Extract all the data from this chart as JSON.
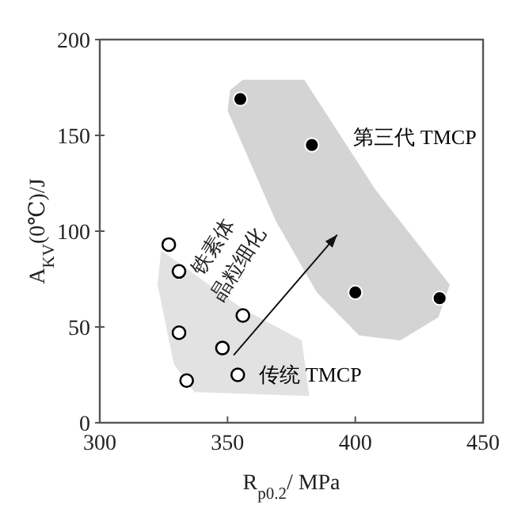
{
  "chart_data": {
    "type": "scatter",
    "xlabel": "R$_{p0.2}$/ MPa",
    "ylabel": "A$_{KV}$(0℃)/J",
    "xlim": [
      300,
      450
    ],
    "ylim": [
      0,
      200
    ],
    "xticks": [
      300,
      350,
      400,
      450
    ],
    "yticks": [
      0,
      50,
      100,
      150,
      200
    ],
    "marker": "circle",
    "series": [
      {
        "name": "第三代 TMCP",
        "color": "#000000",
        "x": [
          355,
          383,
          400,
          433
        ],
        "values": [
          169,
          145,
          68,
          65
        ]
      },
      {
        "name": "传统 TMCP",
        "color": "#000000",
        "x": [
          327,
          331,
          331,
          356,
          348,
          334,
          354
        ],
        "values": [
          93,
          79,
          47,
          56,
          39,
          22,
          25
        ]
      }
    ],
    "annotations": [
      "铁素体",
      "晶粒细化"
    ]
  }
}
